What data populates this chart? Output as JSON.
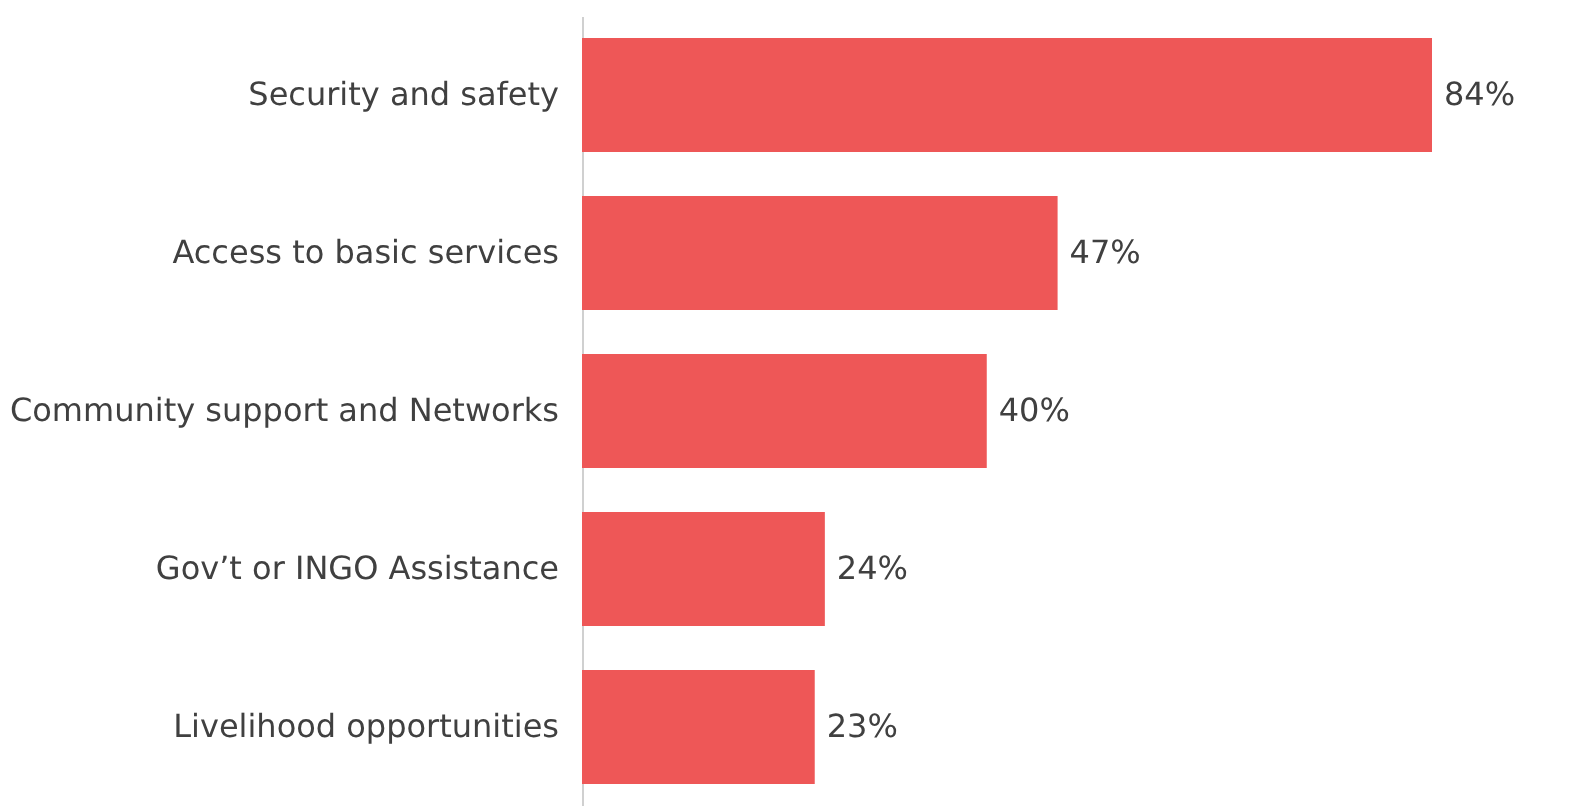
{
  "chart_data": {
    "type": "bar",
    "orientation": "horizontal",
    "categories": [
      "Security and safety",
      "Access to basic services",
      "Community support and Networks",
      "Gov’t or INGO Assistance",
      "Livelihood opportunities"
    ],
    "values": [
      84,
      47,
      40,
      24,
      23
    ],
    "value_labels": [
      "84%",
      "47%",
      "40%",
      "24%",
      "23%"
    ],
    "color": "#ee5757",
    "grid": false
  }
}
